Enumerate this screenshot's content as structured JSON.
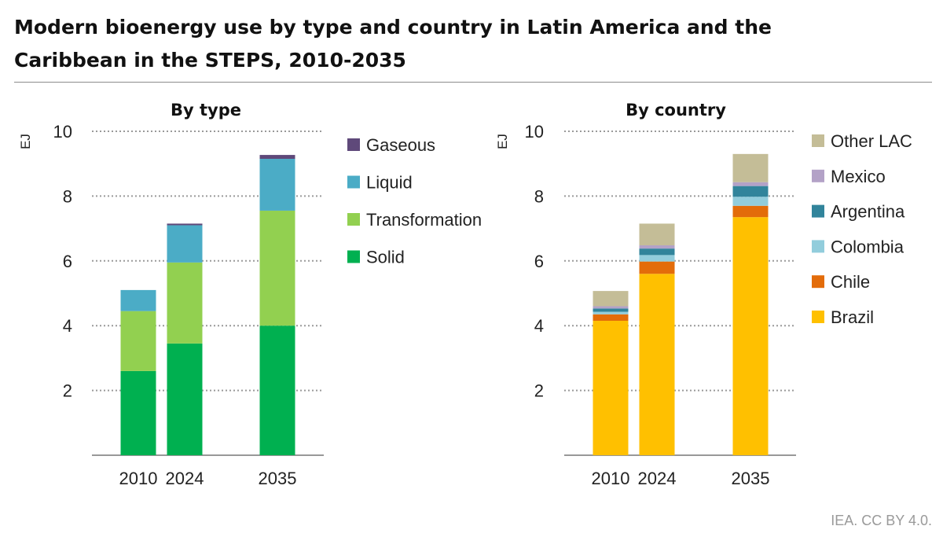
{
  "title": "Modern bioenergy use by type and country in Latin America and the Caribbean in the STEPS, 2010-2035",
  "credit": "IEA. CC BY 4.0.",
  "chart_data": [
    {
      "type": "bar",
      "stacked": true,
      "title": "By type",
      "ylabel": "EJ",
      "ylim": [
        0,
        10
      ],
      "yticks": [
        2,
        4,
        6,
        8,
        10
      ],
      "grid": true,
      "legend_position": "right",
      "categories": [
        "2010",
        "2024",
        "2035"
      ],
      "series": [
        {
          "name": "Solid",
          "color": "#00b050",
          "values": [
            2.6,
            3.45,
            4.0
          ]
        },
        {
          "name": "Transformation",
          "color": "#92d050",
          "values": [
            1.85,
            2.5,
            3.55
          ]
        },
        {
          "name": "Liquid",
          "color": "#4bacc6",
          "values": [
            0.65,
            1.15,
            1.6
          ]
        },
        {
          "name": "Gaseous",
          "color": "#5f497a",
          "values": [
            0.0,
            0.05,
            0.12
          ]
        }
      ]
    },
    {
      "type": "bar",
      "stacked": true,
      "title": "By country",
      "ylabel": "EJ",
      "ylim": [
        0,
        10
      ],
      "yticks": [
        2,
        4,
        6,
        8,
        10
      ],
      "grid": true,
      "legend_position": "right",
      "categories": [
        "2010",
        "2024",
        "2035"
      ],
      "series": [
        {
          "name": "Brazil",
          "color": "#ffc000",
          "values": [
            4.15,
            5.6,
            7.35
          ]
        },
        {
          "name": "Chile",
          "color": "#e36c0a",
          "values": [
            0.2,
            0.38,
            0.35
          ]
        },
        {
          "name": "Colombia",
          "color": "#92cddc",
          "values": [
            0.08,
            0.2,
            0.28
          ]
        },
        {
          "name": "Argentina",
          "color": "#31849b",
          "values": [
            0.1,
            0.2,
            0.33
          ]
        },
        {
          "name": "Mexico",
          "color": "#b3a2c7",
          "values": [
            0.07,
            0.1,
            0.12
          ]
        },
        {
          "name": "Other LAC",
          "color": "#c4bd97",
          "values": [
            0.47,
            0.67,
            0.87
          ]
        }
      ]
    }
  ]
}
